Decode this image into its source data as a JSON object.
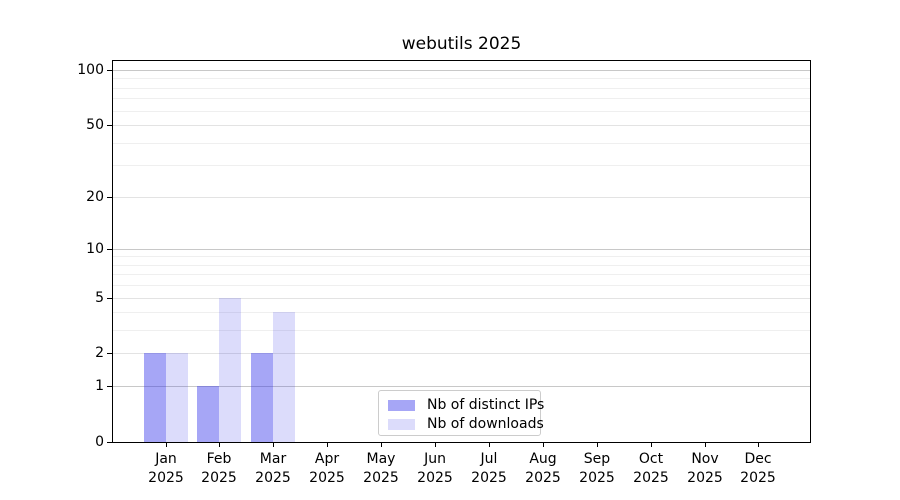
{
  "chart_data": {
    "type": "bar",
    "title": "webutils 2025",
    "categories": [
      "Jan",
      "Feb",
      "Mar",
      "Apr",
      "May",
      "Jun",
      "Jul",
      "Aug",
      "Sep",
      "Oct",
      "Nov",
      "Dec"
    ],
    "category_year": "2025",
    "series": [
      {
        "key": "distinct-ips",
        "name": "Nb of distinct IPs",
        "color": "rgba(42,42,233,0.42)",
        "values": [
          2,
          1,
          2,
          0,
          0,
          0,
          0,
          0,
          0,
          0,
          0,
          0
        ]
      },
      {
        "key": "downloads",
        "name": "Nb of downloads",
        "color": "rgba(42,42,233,0.165)",
        "values": [
          2,
          5,
          4,
          0,
          0,
          0,
          0,
          0,
          0,
          0,
          0,
          0
        ]
      }
    ],
    "yscale": "log1p",
    "ylim": [
      0,
      110
    ],
    "y_ticks": [
      0,
      1,
      2,
      5,
      10,
      20,
      50,
      100
    ],
    "y_major_ticks": [
      1,
      10,
      100
    ],
    "y_minor_gridlines": [
      3,
      4,
      6,
      7,
      8,
      9,
      30,
      40,
      60,
      70,
      80,
      90
    ],
    "grid": "on",
    "legend_position": "lower center"
  }
}
